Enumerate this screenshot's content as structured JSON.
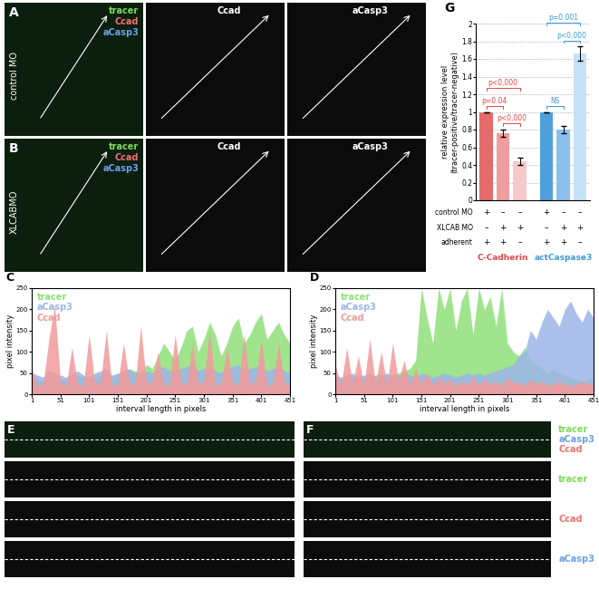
{
  "chart_data": [
    {
      "type": "area",
      "panel": "C",
      "xlabel": "interval length in pixels",
      "ylabel": "pixel intensity",
      "x": [
        1,
        11,
        21,
        31,
        41,
        51,
        61,
        71,
        81,
        91,
        101,
        111,
        121,
        131,
        141,
        151,
        161,
        171,
        181,
        191,
        201,
        211,
        221,
        231,
        241,
        251,
        261,
        271,
        281,
        291,
        301,
        311,
        321,
        331,
        341,
        351,
        361,
        371,
        381,
        391,
        401,
        411,
        421,
        431,
        441,
        451
      ],
      "xlim": [
        1,
        451
      ],
      "xticks": [
        1,
        51,
        101,
        151,
        201,
        251,
        301,
        351,
        401,
        451
      ],
      "ylim": [
        0,
        250
      ],
      "yticks": [
        0,
        50,
        100,
        150,
        200,
        250
      ],
      "series": [
        {
          "name": "tracer",
          "color": "#8fe07a",
          "values": [
            40,
            35,
            30,
            45,
            40,
            35,
            30,
            40,
            45,
            40,
            35,
            40,
            45,
            50,
            40,
            45,
            50,
            60,
            55,
            50,
            70,
            60,
            90,
            120,
            100,
            80,
            110,
            150,
            160,
            100,
            130,
            170,
            140,
            90,
            120,
            160,
            180,
            120,
            140,
            170,
            190,
            130,
            150,
            170,
            140,
            120
          ]
        },
        {
          "name": "aCasp3",
          "color": "#9db4e8",
          "values": [
            50,
            45,
            40,
            55,
            50,
            45,
            40,
            50,
            55,
            45,
            40,
            50,
            55,
            60,
            45,
            50,
            55,
            60,
            50,
            45,
            55,
            50,
            60,
            65,
            55,
            50,
            60,
            65,
            70,
            55,
            60,
            65,
            55,
            50,
            60,
            65,
            70,
            55,
            60,
            65,
            70,
            55,
            60,
            65,
            55,
            50
          ]
        },
        {
          "name": "Ccad",
          "color": "#f29a9a",
          "values": [
            60,
            20,
            25,
            130,
            210,
            30,
            20,
            110,
            25,
            20,
            140,
            25,
            30,
            150,
            20,
            25,
            120,
            30,
            20,
            160,
            25,
            30,
            100,
            20,
            25,
            140,
            30,
            20,
            120,
            25,
            30,
            150,
            20,
            25,
            110,
            30,
            20,
            140,
            25,
            30,
            130,
            20,
            25,
            120,
            30,
            20
          ]
        }
      ]
    },
    {
      "type": "area",
      "panel": "D",
      "xlabel": "interval length in pixels",
      "ylabel": "pixel intensity",
      "x": [
        1,
        11,
        21,
        31,
        41,
        51,
        61,
        71,
        81,
        91,
        101,
        111,
        121,
        131,
        141,
        151,
        161,
        171,
        181,
        191,
        201,
        211,
        221,
        231,
        241,
        251,
        261,
        271,
        281,
        291,
        301,
        311,
        321,
        331,
        341,
        351,
        361,
        371,
        381,
        391,
        401,
        411,
        421,
        431,
        441,
        451
      ],
      "xlim": [
        1,
        451
      ],
      "xticks": [
        1,
        51,
        101,
        151,
        201,
        251,
        301,
        351,
        401,
        451
      ],
      "ylim": [
        0,
        250
      ],
      "yticks": [
        0,
        50,
        100,
        150,
        200,
        250
      ],
      "series": [
        {
          "name": "tracer",
          "color": "#8fe07a",
          "values": [
            40,
            35,
            30,
            40,
            45,
            35,
            40,
            45,
            50,
            40,
            45,
            50,
            55,
            60,
            80,
            250,
            180,
            120,
            250,
            200,
            250,
            150,
            220,
            250,
            140,
            250,
            200,
            230,
            160,
            250,
            120,
            100,
            90,
            110,
            80,
            70,
            60,
            50,
            60,
            50,
            45,
            40,
            35,
            30,
            35,
            40
          ]
        },
        {
          "name": "aCasp3",
          "color": "#9db4e8",
          "values": [
            45,
            40,
            45,
            50,
            40,
            45,
            50,
            40,
            45,
            50,
            40,
            45,
            50,
            45,
            40,
            50,
            45,
            40,
            45,
            50,
            45,
            40,
            45,
            50,
            45,
            50,
            45,
            50,
            55,
            60,
            65,
            70,
            90,
            100,
            150,
            130,
            170,
            200,
            180,
            160,
            200,
            220,
            190,
            170,
            200,
            180
          ]
        },
        {
          "name": "Ccad",
          "color": "#f29a9a",
          "values": [
            70,
            20,
            110,
            25,
            90,
            20,
            130,
            25,
            100,
            20,
            120,
            30,
            80,
            20,
            60,
            25,
            50,
            20,
            40,
            25,
            35,
            20,
            30,
            25,
            40,
            20,
            35,
            25,
            30,
            20,
            40,
            25,
            30,
            20,
            35,
            25,
            30,
            20,
            25,
            30,
            25,
            20,
            25,
            30,
            25,
            20
          ]
        }
      ]
    },
    {
      "type": "bar",
      "panel": "G",
      "ylabel": "relative expression level\n(tracer-positive/tracer-negative)",
      "ylim": [
        0,
        2
      ],
      "yticks": [
        0,
        0.2,
        0.4,
        0.6,
        0.8,
        1,
        1.2,
        1.4,
        1.6,
        1.8,
        2
      ],
      "grid": true,
      "tick_labels": "y",
      "groups": [
        {
          "name": "C-Cadherin",
          "color": "#e0474a",
          "colors": [
            "#e46a6c",
            "#ef9d9e",
            "#f7c9c9"
          ],
          "values": [
            1,
            0.76,
            0.44
          ],
          "errors": [
            0,
            0.04,
            0.04
          ]
        },
        {
          "name": "actCaspase3",
          "color": "#3a9ad9",
          "colors": [
            "#4f9fdc",
            "#8ac0ec",
            "#c6e2f7"
          ],
          "values": [
            1,
            0.8,
            1.66
          ],
          "errors": [
            0,
            0.04,
            0.08
          ]
        }
      ],
      "conditions": [
        {
          "name": "control MO",
          "values": [
            "+",
            "–",
            "–",
            "+",
            "–",
            "–"
          ]
        },
        {
          "name": "XLCAB MO",
          "values": [
            "–",
            "+",
            "+",
            "–",
            "+",
            "+"
          ]
        },
        {
          "name": "adherent",
          "values": [
            "+",
            "+",
            "–",
            "+",
            "+",
            "–"
          ]
        }
      ],
      "comparisons": [
        {
          "bars": [
            0,
            1
          ],
          "label": "p=0.04"
        },
        {
          "bars": [
            0,
            2
          ],
          "label": "p<0,000"
        },
        {
          "bars": [
            1,
            2
          ],
          "label": "p<0,000"
        },
        {
          "bars": [
            3,
            4
          ],
          "label": "NS"
        },
        {
          "bars": [
            3,
            5
          ],
          "label": "p=0.001"
        },
        {
          "bars": [
            4,
            5
          ],
          "label": "p<0,000"
        }
      ]
    }
  ],
  "images": [
    {
      "panel": "A",
      "row_label": "control MO",
      "tiles": [
        {
          "channels": [
            "tracer",
            "Ccad",
            "aCasp3"
          ],
          "colors": [
            "#7ddc5c",
            "#f07070",
            "#6aa0e6"
          ]
        },
        {
          "channels": [
            "Ccad"
          ],
          "colors": [
            "#ffffff"
          ]
        },
        {
          "channels": [
            "aCasp3"
          ],
          "colors": [
            "#ffffff"
          ]
        }
      ]
    },
    {
      "panel": "B",
      "row_label": "XLCABMO",
      "tiles": [
        {
          "channels": [
            "tracer",
            "Ccad",
            "aCasp3"
          ],
          "colors": [
            "#7ddc5c",
            "#f07070",
            "#6aa0e6"
          ]
        },
        {
          "channels": [
            "Ccad"
          ],
          "colors": [
            "#ffffff"
          ]
        },
        {
          "channels": [
            "aCasp3"
          ],
          "colors": [
            "#ffffff"
          ]
        }
      ]
    },
    {
      "panel": "E",
      "tiles": [
        {},
        {},
        {},
        {}
      ]
    },
    {
      "panel": "F",
      "tiles": [
        {
          "channels": [
            "tracer",
            "aCasp3",
            "Ccad"
          ],
          "colors": [
            "#7ddc5c",
            "#6aa0e6",
            "#f07070"
          ]
        },
        {
          "channels": [
            "tracer"
          ],
          "colors": [
            "#7ddc5c"
          ]
        },
        {
          "channels": [
            "Ccad"
          ],
          "colors": [
            "#f07070"
          ]
        },
        {
          "channels": [
            "aCasp3"
          ],
          "colors": [
            "#6aa0e6"
          ]
        }
      ]
    }
  ]
}
